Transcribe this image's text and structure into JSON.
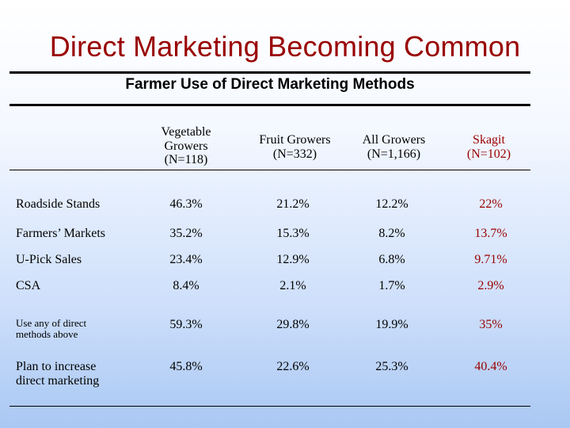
{
  "slide": {
    "title": "Direct Marketing Becoming Common",
    "table_title": "Farmer Use of Direct Marketing Methods"
  },
  "columns": [
    "Vegetable\nGrowers\n(N=118)",
    "Fruit Growers\n(N=332)",
    "All Growers\n(N=1,166)",
    "Skagit\n(N=102)"
  ],
  "rows": [
    {
      "label": "Roadside Stands",
      "values": [
        "46.3%",
        "21.2%",
        "12.2%",
        "22%"
      ]
    },
    {
      "label": "Farmers’ Markets",
      "values": [
        "35.2%",
        "15.3%",
        "8.2%",
        "13.7%"
      ]
    },
    {
      "label": "U-Pick Sales",
      "values": [
        "23.4%",
        "12.9%",
        "6.8%",
        "9.71%"
      ]
    },
    {
      "label": "CSA",
      "values": [
        "8.4%",
        "2.1%",
        "1.7%",
        "2.9%"
      ]
    },
    {
      "label": "Use any of direct\nmethods above",
      "values": [
        "59.3%",
        "29.8%",
        "19.9%",
        "35%"
      ]
    },
    {
      "label": "Plan to increase\ndirect marketing",
      "values": [
        "45.8%",
        "22.6%",
        "25.3%",
        "40.4%"
      ]
    }
  ],
  "colors": {
    "title": "#990000",
    "skagit": "#990000",
    "text": "#000000"
  }
}
